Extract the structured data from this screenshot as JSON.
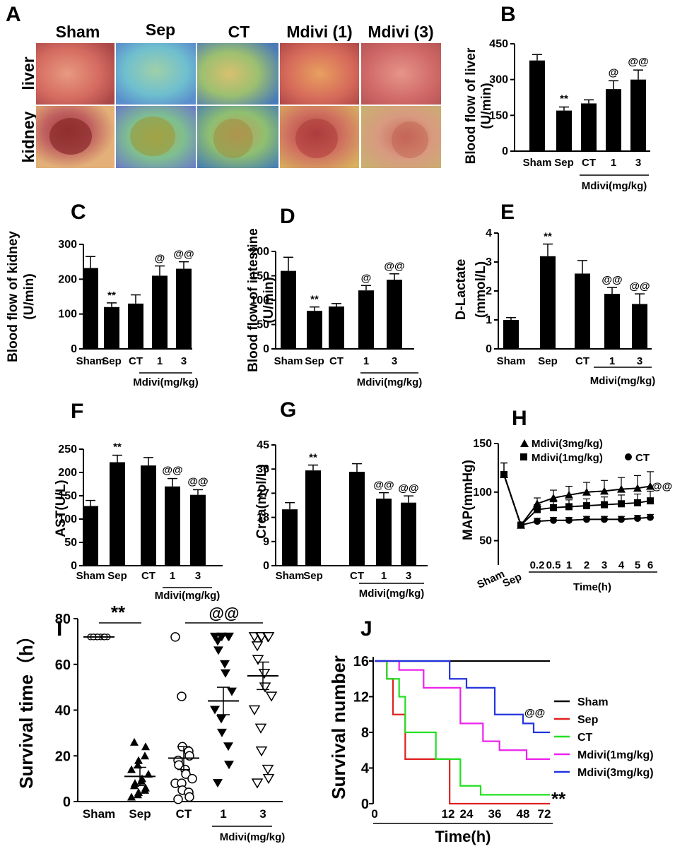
{
  "images": {
    "label": "A",
    "columns": [
      "Sham",
      "Sep",
      "CT",
      "Mdivi (1)",
      "Mdivi (3)"
    ],
    "rows": [
      "liver",
      "kidney"
    ]
  },
  "chart_data": [
    {
      "id": "B",
      "type": "bar",
      "title": "",
      "ylabel": "Blood flow of liver\n(U/min)",
      "categories": [
        "Sham",
        "Sep",
        "CT",
        "1",
        "3"
      ],
      "values": [
        380,
        170,
        200,
        260,
        300
      ],
      "errors": [
        25,
        15,
        15,
        35,
        40
      ],
      "annotations": [
        "",
        "**",
        "",
        "@",
        "@@"
      ],
      "ylim": [
        0,
        450
      ],
      "yticks": [
        0,
        150,
        300,
        450
      ],
      "group_label": "Mdivi(mg/kg)"
    },
    {
      "id": "C",
      "type": "bar",
      "ylabel": "Blood flow of kidney\n(U/min)",
      "categories": [
        "Sham",
        "Sep",
        "CT",
        "1",
        "3"
      ],
      "values": [
        232,
        120,
        130,
        210,
        230
      ],
      "errors": [
        33,
        12,
        25,
        28,
        20
      ],
      "annotations": [
        "",
        "**",
        "",
        "@",
        "@@"
      ],
      "ylim": [
        0,
        300
      ],
      "yticks": [
        0,
        100,
        200,
        300
      ],
      "group_label": "Mdivi(mg/kg)"
    },
    {
      "id": "D",
      "type": "bar",
      "ylabel": "Blood flow of intestine\n(U/min)",
      "categories": [
        "Sham",
        "Sep",
        "CT",
        "1",
        "3"
      ],
      "values": [
        160,
        78,
        87,
        120,
        142
      ],
      "errors": [
        28,
        8,
        6,
        10,
        12
      ],
      "annotations": [
        "",
        "**",
        "",
        "@",
        "@@"
      ],
      "ylim": [
        0,
        200
      ],
      "yticks": [
        0,
        50,
        100,
        150,
        200
      ],
      "group_label": "Mdivi(mg/kg)"
    },
    {
      "id": "E",
      "type": "bar",
      "ylabel": "D-Lactate\n(mmol/L)",
      "categories": [
        "Sham",
        "Sep",
        "CT",
        "1",
        "3"
      ],
      "values": [
        1.0,
        3.2,
        2.6,
        1.9,
        1.55
      ],
      "errors": [
        0.08,
        0.42,
        0.45,
        0.22,
        0.35
      ],
      "annotations": [
        "",
        "**",
        "",
        "@@",
        "@@"
      ],
      "ylim": [
        0,
        4
      ],
      "yticks": [
        0,
        1,
        2,
        3,
        4
      ],
      "group_label": "Mdivi(mg/kg)"
    },
    {
      "id": "F",
      "type": "bar",
      "ylabel": "AST(U/L)",
      "categories": [
        "Sham",
        "Sep",
        "CT",
        "1",
        "3"
      ],
      "values": [
        128,
        222,
        215,
        170,
        152
      ],
      "errors": [
        12,
        15,
        17,
        17,
        11
      ],
      "annotations": [
        "",
        "**",
        "",
        "@@",
        "@@"
      ],
      "ylim": [
        0,
        250
      ],
      "yticks": [
        0,
        50,
        100,
        150,
        200,
        250
      ],
      "group_label": "Mdivi(mg/kg)"
    },
    {
      "id": "G",
      "type": "bar",
      "ylabel": "Crea(mol/L)",
      "categories": [
        "Sham",
        "Sep",
        "CT",
        "1",
        "3"
      ],
      "values": [
        21,
        35.5,
        35,
        25,
        23.5
      ],
      "errors": [
        2.5,
        2,
        3,
        2.2,
        2.5
      ],
      "annotations": [
        "",
        "**",
        "",
        "@@",
        "@@"
      ],
      "ylim": [
        0,
        45
      ],
      "yticks": [
        0,
        9,
        18,
        27,
        36,
        45
      ],
      "group_label": "Mdivi(mg/kg)"
    },
    {
      "id": "H",
      "type": "line",
      "ylabel": "MAP(mmHg)",
      "xlabel": "Time(h)",
      "x": [
        "Sham",
        "Sep",
        "0.2",
        "0.5",
        "1",
        "2",
        "3",
        "4",
        "5",
        "6"
      ],
      "xtick_labels": [
        "Sham",
        "Sep",
        "0.2",
        "0.5",
        "1",
        "2",
        "3",
        "4",
        "5",
        "6"
      ],
      "ylim": [
        25,
        150
      ],
      "yticks": [
        50,
        100,
        150
      ],
      "series": [
        {
          "name": "Mdivi(3mg/kg)",
          "marker": "triangle",
          "values": [
            118,
            66,
            88,
            94,
            97,
            100,
            101,
            103,
            104,
            106
          ],
          "errors": [
            12,
            3,
            6,
            8,
            9,
            10,
            11,
            12,
            13,
            15
          ]
        },
        {
          "name": "Mdivi(1mg/kg)",
          "marker": "square",
          "values": [
            118,
            66,
            82,
            84,
            85,
            86,
            87,
            88,
            89,
            91
          ],
          "errors": [
            12,
            3,
            5,
            6,
            7,
            7,
            8,
            9,
            9,
            10
          ]
        },
        {
          "name": "CT",
          "marker": "circle",
          "values": [
            118,
            66,
            70,
            71,
            71,
            72,
            72,
            72,
            73,
            74
          ],
          "errors": [
            12,
            3,
            3,
            3,
            3,
            3,
            3,
            3,
            3,
            3
          ]
        }
      ],
      "annotations": [
        "@@"
      ]
    },
    {
      "id": "I",
      "type": "scatter",
      "ylabel": "Survival time（h）",
      "categories": [
        "Sham",
        "Sep",
        "CT",
        "1",
        "3"
      ],
      "means": [
        72,
        11,
        19,
        44,
        55
      ],
      "sems": [
        0,
        4,
        5,
        6,
        6
      ],
      "points": [
        [
          72,
          72,
          72,
          72,
          72,
          72,
          72,
          72,
          72,
          72,
          72,
          72,
          72,
          72,
          72,
          72
        ],
        [
          2,
          3,
          4,
          5,
          6,
          7,
          8,
          9,
          10,
          12,
          14,
          16,
          18,
          20,
          24,
          26
        ],
        [
          72,
          46,
          24,
          22,
          20,
          18,
          16,
          14,
          12,
          10,
          8,
          8,
          5,
          4,
          2,
          1
        ],
        [
          72,
          72,
          72,
          72,
          72,
          70,
          66,
          60,
          56,
          48,
          40,
          36,
          30,
          24,
          16,
          8
        ],
        [
          72,
          72,
          72,
          72,
          72,
          68,
          62,
          56,
          50,
          46,
          40,
          32,
          22,
          14,
          10,
          8
        ]
      ],
      "ylim": [
        0,
        80
      ],
      "yticks": [
        0,
        20,
        40,
        60,
        80
      ],
      "annotations": [
        "**",
        "@@"
      ],
      "group_label": "Mdivi(mg/kg)"
    },
    {
      "id": "J",
      "type": "line",
      "ylabel": "Survival number",
      "xlabel": "Time(h)",
      "xticks": [
        0,
        12,
        24,
        36,
        48,
        72
      ],
      "ylim": [
        0,
        16
      ],
      "yticks": [
        0,
        4,
        8,
        12,
        16
      ],
      "series": [
        {
          "name": "Sham",
          "color": "#000000",
          "steps": [
            [
              0,
              16
            ],
            [
              75,
              16
            ]
          ]
        },
        {
          "name": "Sep",
          "color": "#e02020",
          "steps": [
            [
              0,
              16
            ],
            [
              2,
              16
            ],
            [
              2,
              14
            ],
            [
              3,
              14
            ],
            [
              3,
              10
            ],
            [
              5,
              10
            ],
            [
              5,
              5
            ],
            [
              13,
              5
            ],
            [
              13,
              0
            ],
            [
              75,
              0
            ]
          ]
        },
        {
          "name": "CT",
          "color": "#22e022",
          "steps": [
            [
              0,
              16
            ],
            [
              2,
              16
            ],
            [
              2,
              14
            ],
            [
              4,
              14
            ],
            [
              4,
              12
            ],
            [
              5,
              12
            ],
            [
              5,
              8
            ],
            [
              10,
              8
            ],
            [
              10,
              5
            ],
            [
              20,
              5
            ],
            [
              20,
              2
            ],
            [
              30,
              2
            ],
            [
              30,
              1
            ],
            [
              75,
              1
            ]
          ]
        },
        {
          "name": "Mdivi(1mg/kg)",
          "color": "#ee22ee",
          "steps": [
            [
              0,
              16
            ],
            [
              4,
              16
            ],
            [
              4,
              15
            ],
            [
              8,
              15
            ],
            [
              8,
              13
            ],
            [
              20,
              13
            ],
            [
              20,
              9
            ],
            [
              31,
              9
            ],
            [
              31,
              7
            ],
            [
              38,
              7
            ],
            [
              38,
              6
            ],
            [
              52,
              6
            ],
            [
              52,
              5
            ],
            [
              75,
              5
            ]
          ]
        },
        {
          "name": "Mdivi(3mg/kg)",
          "color": "#2233dd",
          "steps": [
            [
              0,
              16
            ],
            [
              13,
              16
            ],
            [
              13,
              14
            ],
            [
              24,
              14
            ],
            [
              24,
              13
            ],
            [
              36,
              13
            ],
            [
              36,
              10
            ],
            [
              48,
              10
            ],
            [
              48,
              9
            ],
            [
              60,
              9
            ],
            [
              60,
              8
            ],
            [
              75,
              8
            ]
          ]
        }
      ],
      "annotations": [
        "@@",
        "**"
      ]
    }
  ]
}
